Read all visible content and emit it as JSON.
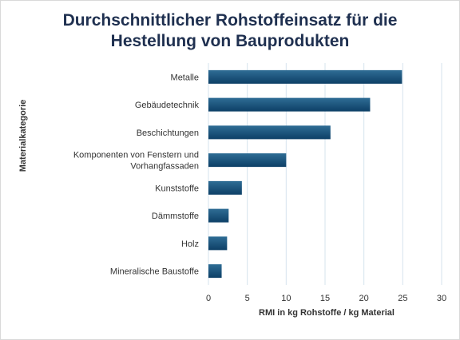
{
  "chart_data": {
    "type": "bar",
    "orientation": "horizontal",
    "title_lines": [
      "Durchschnittlicher Rohstoffeinsatz für die",
      "Hestellung von Bauprodukten"
    ],
    "xlabel": "RMI in kg Rohstoffe / kg Material",
    "ylabel": "Materialkategorie",
    "categories": [
      [
        "Metalle"
      ],
      [
        "Gebäudetechnik"
      ],
      [
        "Beschichtungen"
      ],
      [
        "Komponenten von Fenstern und",
        "Vorhangfassaden"
      ],
      [
        "Kunststoffe"
      ],
      [
        "Dämmstoffe"
      ],
      [
        "Holz"
      ],
      [
        "Mineralische Baustoffe"
      ]
    ],
    "values": [
      24.9,
      20.8,
      15.7,
      10.0,
      4.3,
      2.6,
      2.4,
      1.7
    ],
    "xlim": [
      0,
      30
    ],
    "xticks": [
      "0",
      "5",
      "10",
      "15",
      "20",
      "25",
      "30"
    ],
    "grid": "vertical",
    "legend": "none",
    "colors": {
      "bar_dark": "#0d3f66",
      "bar_light": "#2f6d95",
      "grid": "#d6e3ee",
      "title": "#1f3050"
    }
  }
}
